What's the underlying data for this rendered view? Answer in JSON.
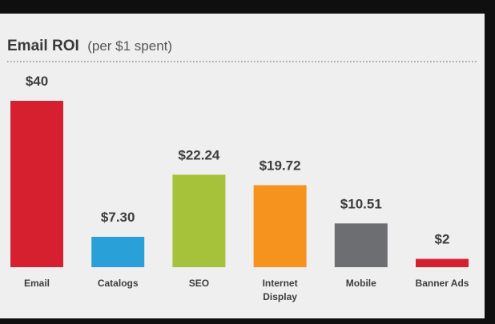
{
  "chart_data": {
    "type": "bar",
    "title": "Email ROI",
    "subtitle": "(per $1 spent)",
    "categories": [
      [
        "Email"
      ],
      [
        "Catalogs"
      ],
      [
        "SEO"
      ],
      [
        "Internet",
        "Display"
      ],
      [
        "Mobile"
      ],
      [
        "Banner Ads"
      ]
    ],
    "values": [
      40,
      7.3,
      22.24,
      19.72,
      10.51,
      2
    ],
    "data_labels": [
      "$40",
      "$7.30",
      "$22.24",
      "$19.72",
      "$10.51",
      "$2"
    ],
    "colors": [
      "#d7202f",
      "#2aa0d8",
      "#a6c23a",
      "#f6921e",
      "#6d6e71",
      "#d7202f"
    ],
    "ylim": [
      0,
      40
    ],
    "grid": false,
    "legend": "none"
  }
}
